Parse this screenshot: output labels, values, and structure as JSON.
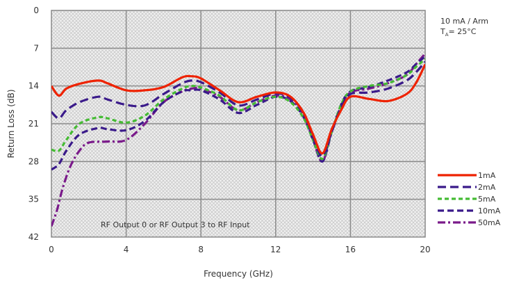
{
  "chart_data": {
    "type": "line",
    "title": "",
    "xlabel": "Frequency (GHz)",
    "ylabel": "Return Loss (dB)",
    "xlim": [
      0,
      20
    ],
    "ylim": [
      0,
      42
    ],
    "y_inverted": true,
    "x_ticks": [
      "0",
      "4",
      "8",
      "12",
      "16",
      "20"
    ],
    "y_ticks": [
      "0",
      "7",
      "14",
      "21",
      "28",
      "35",
      "42"
    ],
    "grid": true,
    "legend_position": "right",
    "conditions": {
      "line1": "10 mA / Arm",
      "line2_prefix": "T",
      "line2_sub": "A",
      "line2_rest": "= 25°C"
    },
    "annotation": "RF Output 0 or RF Output 3 to RF Input",
    "series": [
      {
        "name": "1mA",
        "color": "#ee2200",
        "dash": "solid",
        "x": [
          0,
          0.4,
          0.8,
          1.5,
          2.5,
          3.0,
          4.0,
          5.0,
          6.0,
          7.0,
          7.5,
          8.0,
          9.0,
          10.0,
          11.0,
          12.0,
          12.8,
          13.5,
          14.0,
          14.5,
          15.0,
          15.5,
          16.0,
          17.0,
          18.0,
          19.0,
          19.5,
          20.0
        ],
        "y": [
          14.0,
          15.8,
          14.5,
          13.6,
          13.0,
          13.5,
          14.8,
          14.8,
          14.2,
          12.4,
          12.2,
          12.6,
          14.8,
          17.0,
          16.0,
          15.2,
          16.0,
          19.0,
          23.0,
          26.5,
          22.0,
          18.5,
          16.0,
          16.4,
          16.8,
          15.5,
          13.5,
          10.0
        ]
      },
      {
        "name": "2mA",
        "color": "#3a1a8a",
        "dash": "long",
        "x": [
          0,
          0.4,
          0.8,
          1.5,
          2.5,
          3.0,
          4.0,
          5.0,
          6.0,
          7.0,
          7.5,
          8.0,
          9.0,
          10.0,
          11.0,
          12.0,
          12.8,
          13.5,
          14.0,
          14.5,
          15.0,
          15.5,
          16.0,
          17.0,
          18.0,
          19.0,
          19.5,
          20.0
        ],
        "y": [
          18.8,
          20.0,
          18.5,
          17.0,
          16.0,
          16.5,
          17.5,
          17.6,
          15.5,
          13.5,
          13.0,
          13.3,
          15.2,
          17.6,
          16.5,
          15.4,
          16.2,
          19.0,
          23.5,
          27.0,
          22.5,
          18.0,
          15.5,
          15.2,
          14.5,
          13.0,
          11.5,
          9.5
        ]
      },
      {
        "name": "5mA",
        "color": "#44bb33",
        "dash": "dashed",
        "x": [
          0,
          0.4,
          0.8,
          1.5,
          2.5,
          3.0,
          4.0,
          5.0,
          6.0,
          7.0,
          7.5,
          8.0,
          9.0,
          10.0,
          11.0,
          12.0,
          12.8,
          13.5,
          14.0,
          14.5,
          15.0,
          15.5,
          16.0,
          17.0,
          18.0,
          19.0,
          19.5,
          20.0
        ],
        "y": [
          25.8,
          26.0,
          24.0,
          21.0,
          19.8,
          20.0,
          20.8,
          19.5,
          16.5,
          14.5,
          14.0,
          14.3,
          15.8,
          18.5,
          17.0,
          16.0,
          17.0,
          20.0,
          24.0,
          27.5,
          22.5,
          17.5,
          15.0,
          14.0,
          13.5,
          12.0,
          10.5,
          9.0
        ]
      },
      {
        "name": "10mA",
        "color": "#3a1a8a",
        "dash": "medium",
        "x": [
          0,
          0.4,
          0.8,
          1.5,
          2.5,
          3.0,
          4.0,
          5.0,
          6.0,
          7.0,
          7.5,
          8.0,
          9.0,
          10.0,
          11.0,
          12.0,
          12.8,
          13.5,
          14.0,
          14.5,
          15.0,
          15.5,
          16.0,
          17.0,
          18.0,
          19.0,
          19.5,
          20.0
        ],
        "y": [
          29.5,
          28.5,
          26.0,
          23.0,
          21.8,
          22.0,
          22.2,
          20.5,
          17.0,
          15.0,
          14.8,
          14.8,
          16.5,
          19.0,
          17.5,
          16.0,
          16.8,
          19.8,
          24.0,
          28.0,
          22.5,
          17.5,
          15.0,
          14.2,
          13.0,
          11.5,
          10.0,
          8.5
        ]
      },
      {
        "name": "50mA",
        "color": "#7a1a8a",
        "dash": "dashdot",
        "x": [
          0,
          0.3,
          0.6,
          1.0,
          1.5,
          2.0,
          3.0,
          4.0,
          5.0,
          6.0,
          7.0,
          7.5,
          8.0,
          9.0,
          10.0,
          11.0,
          12.0,
          12.8,
          13.5,
          14.0,
          14.5,
          15.0,
          15.5,
          16.0,
          17.0,
          18.0,
          19.0,
          19.5,
          20.0
        ],
        "y": [
          40.0,
          37.0,
          33.0,
          29.0,
          26.0,
          24.5,
          24.3,
          24.0,
          21.0,
          17.0,
          15.0,
          14.5,
          14.5,
          16.0,
          18.5,
          17.0,
          15.8,
          16.5,
          19.5,
          24.0,
          28.0,
          22.5,
          17.8,
          15.2,
          14.5,
          13.5,
          12.0,
          10.0,
          8.0
        ]
      }
    ]
  }
}
